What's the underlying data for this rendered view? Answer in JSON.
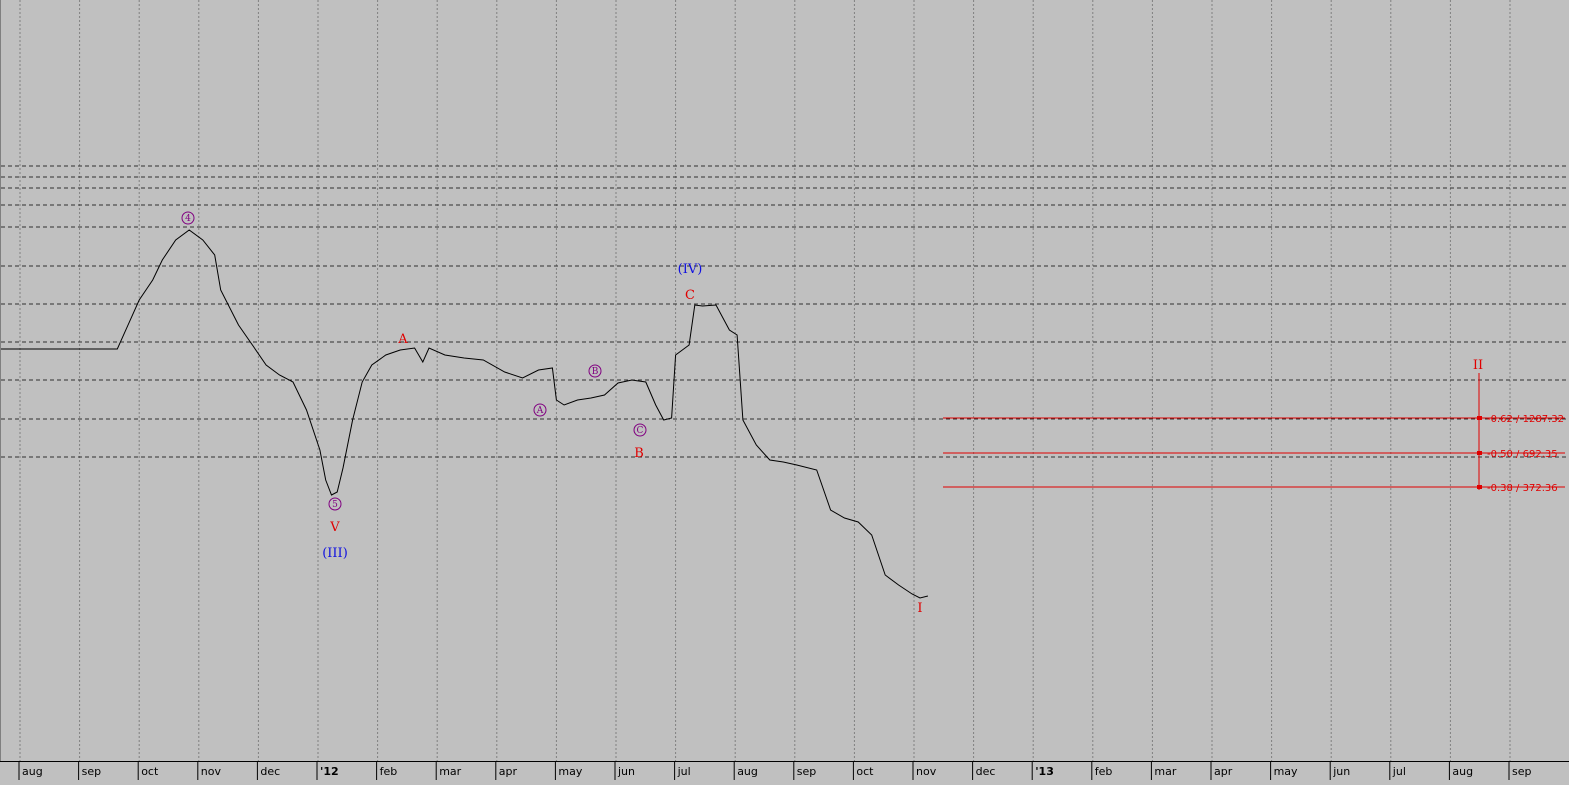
{
  "colors": {
    "background": "#c0c0c0",
    "price_line": "#000000",
    "grid": "#808080",
    "wave_red": "#e00000",
    "wave_blue": "#1010e0",
    "wave_purple": "#800080",
    "fib": "#e00000"
  },
  "chart_data": {
    "type": "line",
    "title": "",
    "xlabel": "",
    "ylabel": "",
    "grid": true,
    "x_tick_labels": [
      "aug",
      "sep",
      "oct",
      "nov",
      "dec",
      "'12",
      "feb",
      "mar",
      "apr",
      "may",
      "jun",
      "jul",
      "aug",
      "sep",
      "oct",
      "nov",
      "dec",
      "'13",
      "feb",
      "mar",
      "apr",
      "may",
      "jun",
      "jul",
      "aug",
      "sep"
    ],
    "series": [
      {
        "values": [
          [
            "2011-07-20",
            349
          ],
          [
            "2011-09-20",
            349
          ],
          [
            "2011-10-01",
            300
          ],
          [
            "2011-10-08",
            280
          ],
          [
            "2011-10-13",
            260
          ],
          [
            "2011-10-20",
            240
          ],
          [
            "2011-10-27",
            230
          ],
          [
            "2011-11-03",
            240
          ],
          [
            "2011-11-09",
            255
          ],
          [
            "2011-11-12",
            290
          ],
          [
            "2011-11-21",
            325
          ],
          [
            "2011-11-28",
            345
          ],
          [
            "2011-12-05",
            365
          ],
          [
            "2011-12-12",
            375
          ],
          [
            "2011-12-19",
            382
          ],
          [
            "2011-12-26",
            410
          ],
          [
            "2012-01-02",
            450
          ],
          [
            "2012-01-05",
            480
          ],
          [
            "2012-01-08",
            495
          ],
          [
            "2012-01-11",
            492
          ],
          [
            "2012-01-14",
            468
          ],
          [
            "2012-01-19",
            420
          ],
          [
            "2012-01-24",
            382
          ],
          [
            "2012-01-29",
            365
          ],
          [
            "2012-02-05",
            355
          ],
          [
            "2012-02-12",
            350
          ],
          [
            "2012-02-19",
            348
          ],
          [
            "2012-02-23",
            362
          ],
          [
            "2012-02-26",
            348
          ],
          [
            "2012-03-05",
            355
          ],
          [
            "2012-03-15",
            358
          ],
          [
            "2012-03-25",
            360
          ],
          [
            "2012-04-05",
            372
          ],
          [
            "2012-04-14",
            378
          ],
          [
            "2012-04-22",
            370
          ],
          [
            "2012-04-29",
            368
          ],
          [
            "2012-05-01",
            400
          ],
          [
            "2012-05-05",
            405
          ],
          [
            "2012-05-12",
            400
          ],
          [
            "2012-05-19",
            398
          ],
          [
            "2012-05-26",
            395
          ],
          [
            "2012-06-02",
            383
          ],
          [
            "2012-06-09",
            380
          ],
          [
            "2012-06-16",
            382
          ],
          [
            "2012-06-21",
            405
          ],
          [
            "2012-06-25",
            420
          ],
          [
            "2012-06-29",
            418
          ],
          [
            "2012-07-01",
            355
          ],
          [
            "2012-07-08",
            345
          ],
          [
            "2012-07-11",
            305
          ],
          [
            "2012-07-15",
            306
          ],
          [
            "2012-07-22",
            305
          ],
          [
            "2012-07-29",
            330
          ],
          [
            "2012-08-02",
            335
          ],
          [
            "2012-08-05",
            420
          ],
          [
            "2012-08-12",
            445
          ],
          [
            "2012-08-19",
            460
          ],
          [
            "2012-08-26",
            462
          ],
          [
            "2012-09-02",
            465
          ],
          [
            "2012-09-12",
            470
          ],
          [
            "2012-09-19",
            510
          ],
          [
            "2012-09-26",
            518
          ],
          [
            "2012-10-03",
            522
          ],
          [
            "2012-10-10",
            535
          ],
          [
            "2012-10-17",
            575
          ],
          [
            "2012-10-24",
            585
          ],
          [
            "2012-10-31",
            594
          ],
          [
            "2012-11-04",
            598
          ],
          [
            "2012-11-08",
            596
          ]
        ]
      }
    ],
    "wave_labels": [
      {
        "text": "4",
        "date": "2011-10-27",
        "style": "purple-circle"
      },
      {
        "text": "5",
        "date": "2012-01-08",
        "style": "purple-circle"
      },
      {
        "text": "V",
        "date": "2012-01-08",
        "style": "red"
      },
      {
        "text": "(III)",
        "date": "2012-01-08",
        "style": "blue"
      },
      {
        "text": "A",
        "date": "2012-02-12",
        "style": "red"
      },
      {
        "text": "A",
        "date": "2012-05-01",
        "style": "purple-circle"
      },
      {
        "text": "B",
        "date": "2012-05-26",
        "style": "purple-circle"
      },
      {
        "text": "C",
        "date": "2012-06-21",
        "style": "purple-circle"
      },
      {
        "text": "B",
        "date": "2012-06-21",
        "style": "red"
      },
      {
        "text": "(IV)",
        "date": "2012-07-15",
        "style": "blue"
      },
      {
        "text": "C",
        "date": "2012-07-15",
        "style": "red"
      },
      {
        "text": "I",
        "date": "2012-11-03",
        "style": "red"
      },
      {
        "text": "II",
        "date": "2013-08-07",
        "style": "red"
      }
    ],
    "fib_levels": [
      {
        "ratio": "0.62",
        "value": "1287.32",
        "label": "-0.62 / 1287.32"
      },
      {
        "ratio": "0.50",
        "value": "692.35",
        "label": "-0.50 / 692.35"
      },
      {
        "ratio": "0.38",
        "value": "372.36",
        "label": "-0.38 / 372.36"
      }
    ]
  }
}
